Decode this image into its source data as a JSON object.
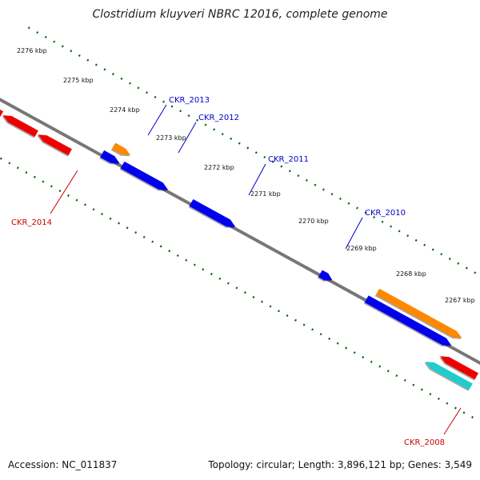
{
  "title": "Clostridium kluyveri NBRC 12016, complete genome",
  "footer": {
    "accession": "Accession: NC_011837",
    "stats": "Topology: circular; Length: 3,896,121 bp; Genes: 3,549"
  },
  "colors": {
    "cds_forward": "#0000ee",
    "cds_reverse": "#ee0000",
    "rna_forward": "#ff8800",
    "rna_reverse": "#22cccc",
    "scale_ticks": "#006600",
    "backbone": "#777777",
    "label_forward": "#0000cc",
    "label_reverse": "#cc0000"
  },
  "scale": {
    "tick_labels": [
      "2276 kbp",
      "2275 kbp",
      "2274 kbp",
      "2273 kbp",
      "2272 kbp",
      "2271 kbp",
      "2270 kbp",
      "2269 kbp",
      "2268 kbp",
      "2267 kbp"
    ]
  },
  "genes": [
    {
      "label": "CKR_2014",
      "strand": "reverse"
    },
    {
      "label": "CKR_2013",
      "strand": "forward"
    },
    {
      "label": "CKR_2012",
      "strand": "forward"
    },
    {
      "label": "CKR_2011",
      "strand": "forward"
    },
    {
      "label": "CKR_2010",
      "strand": "forward"
    },
    {
      "label": "CKR_2008",
      "strand": "reverse"
    }
  ]
}
